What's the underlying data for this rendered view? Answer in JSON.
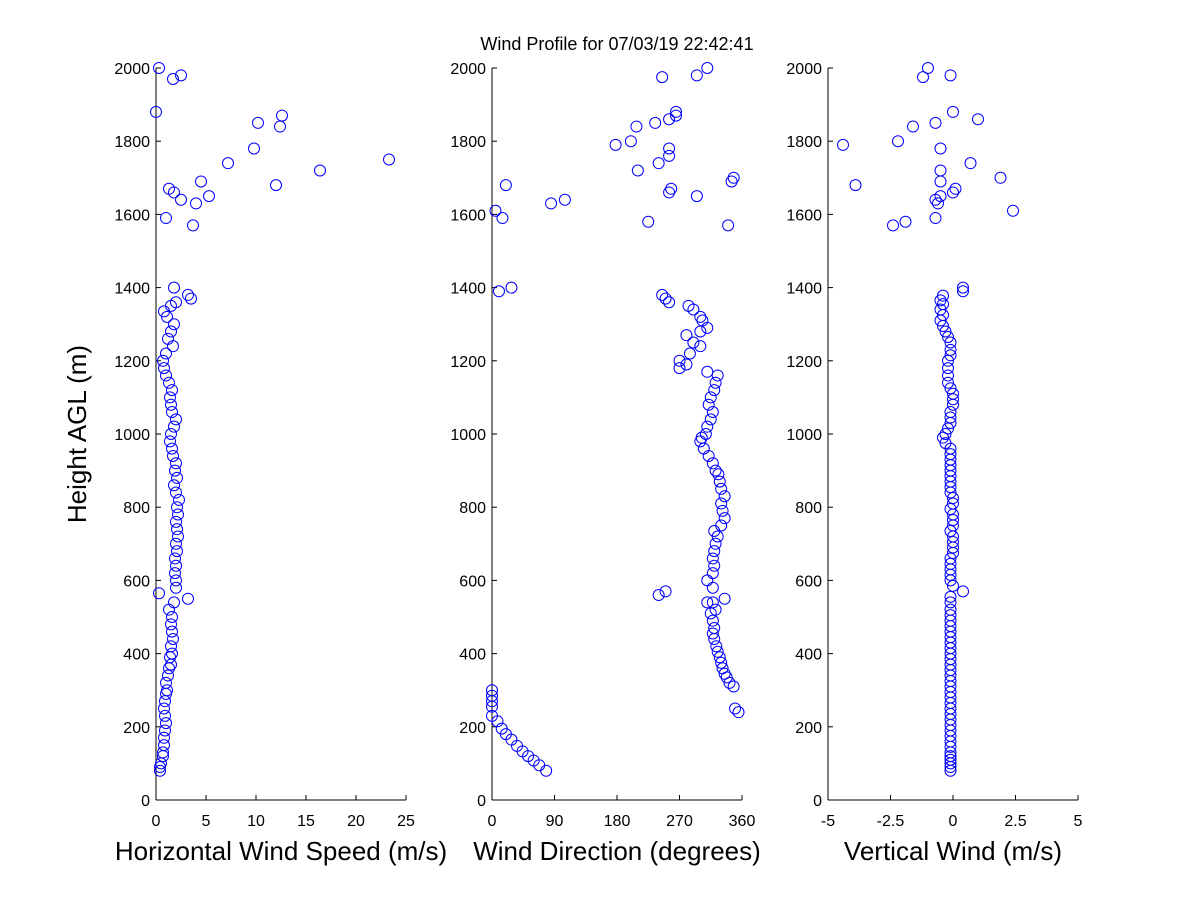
{
  "title": "Wind Profile for  07/03/19 22:42:41",
  "chart_data": [
    {
      "type": "scatter",
      "xlabel": "Horizontal Wind Speed (m/s)",
      "ylabel": "Height AGL (m)",
      "xlim": [
        0,
        25
      ],
      "ylim": [
        0,
        2000
      ],
      "xticks": [
        "0",
        "5",
        "10",
        "15",
        "20",
        "25"
      ],
      "yticks": [
        "0",
        "200",
        "400",
        "600",
        "800",
        "1000",
        "1200",
        "1400",
        "1600",
        "1800",
        "2000"
      ],
      "marker_color": "#0000ff",
      "points": [
        [
          0.4,
          80
        ],
        [
          0.4,
          90
        ],
        [
          0.5,
          100
        ],
        [
          0.7,
          120
        ],
        [
          0.7,
          130
        ],
        [
          0.8,
          150
        ],
        [
          0.8,
          170
        ],
        [
          0.9,
          190
        ],
        [
          1.0,
          210
        ],
        [
          0.9,
          230
        ],
        [
          0.8,
          250
        ],
        [
          0.9,
          270
        ],
        [
          1.0,
          290
        ],
        [
          1.1,
          300
        ],
        [
          1.0,
          320
        ],
        [
          1.2,
          340
        ],
        [
          1.3,
          360
        ],
        [
          1.5,
          370
        ],
        [
          1.4,
          390
        ],
        [
          1.6,
          400
        ],
        [
          1.5,
          420
        ],
        [
          1.7,
          440
        ],
        [
          1.6,
          460
        ],
        [
          1.5,
          480
        ],
        [
          1.6,
          500
        ],
        [
          1.3,
          520
        ],
        [
          1.8,
          540
        ],
        [
          3.2,
          550
        ],
        [
          0.3,
          565
        ],
        [
          2.0,
          580
        ],
        [
          2.0,
          600
        ],
        [
          1.9,
          620
        ],
        [
          2.0,
          640
        ],
        [
          1.9,
          660
        ],
        [
          2.1,
          680
        ],
        [
          2.0,
          700
        ],
        [
          2.2,
          720
        ],
        [
          2.1,
          740
        ],
        [
          2.0,
          760
        ],
        [
          2.2,
          780
        ],
        [
          2.1,
          800
        ],
        [
          2.3,
          820
        ],
        [
          2.0,
          840
        ],
        [
          1.8,
          860
        ],
        [
          2.1,
          880
        ],
        [
          1.9,
          900
        ],
        [
          2.0,
          920
        ],
        [
          1.7,
          940
        ],
        [
          1.6,
          960
        ],
        [
          1.4,
          980
        ],
        [
          1.5,
          1000
        ],
        [
          1.8,
          1020
        ],
        [
          2.0,
          1040
        ],
        [
          1.6,
          1060
        ],
        [
          1.5,
          1080
        ],
        [
          1.4,
          1100
        ],
        [
          1.6,
          1120
        ],
        [
          1.3,
          1140
        ],
        [
          1.0,
          1160
        ],
        [
          0.8,
          1180
        ],
        [
          0.7,
          1200
        ],
        [
          1.0,
          1220
        ],
        [
          1.7,
          1240
        ],
        [
          1.2,
          1260
        ],
        [
          1.5,
          1280
        ],
        [
          1.8,
          1300
        ],
        [
          1.1,
          1320
        ],
        [
          0.8,
          1335
        ],
        [
          1.5,
          1350
        ],
        [
          2.0,
          1360
        ],
        [
          3.5,
          1370
        ],
        [
          3.2,
          1380
        ],
        [
          1.8,
          1400
        ],
        [
          3.7,
          1570
        ],
        [
          1.0,
          1590
        ],
        [
          4.0,
          1630
        ],
        [
          2.5,
          1640
        ],
        [
          5.3,
          1650
        ],
        [
          1.8,
          1660
        ],
        [
          1.3,
          1670
        ],
        [
          12.0,
          1680
        ],
        [
          4.5,
          1690
        ],
        [
          16.4,
          1720
        ],
        [
          7.2,
          1740
        ],
        [
          23.3,
          1750
        ],
        [
          9.8,
          1780
        ],
        [
          12.4,
          1840
        ],
        [
          10.2,
          1850
        ],
        [
          12.6,
          1870
        ],
        [
          0.0,
          1880
        ],
        [
          1.7,
          1970
        ],
        [
          2.5,
          1980
        ],
        [
          0.3,
          2000
        ]
      ]
    },
    {
      "type": "scatter",
      "xlabel": "Wind Direction (degrees)",
      "ylabel": "",
      "xlim": [
        0,
        360
      ],
      "ylim": [
        0,
        2000
      ],
      "xticks": [
        "0",
        "90",
        "180",
        "270",
        "360"
      ],
      "yticks": [
        "0",
        "200",
        "400",
        "600",
        "800",
        "1000",
        "1200",
        "1400",
        "1600",
        "1800",
        "2000"
      ],
      "marker_color": "#0000ff",
      "points": [
        [
          78,
          80
        ],
        [
          68,
          95
        ],
        [
          60,
          108
        ],
        [
          52,
          120
        ],
        [
          44,
          133
        ],
        [
          36,
          148
        ],
        [
          28,
          165
        ],
        [
          20,
          180
        ],
        [
          14,
          195
        ],
        [
          8,
          215
        ],
        [
          0,
          230
        ],
        [
          0,
          255
        ],
        [
          0,
          270
        ],
        [
          0,
          285
        ],
        [
          0,
          300
        ],
        [
          355,
          240
        ],
        [
          350,
          250
        ],
        [
          348,
          310
        ],
        [
          342,
          320
        ],
        [
          338,
          335
        ],
        [
          335,
          345
        ],
        [
          332,
          360
        ],
        [
          330,
          375
        ],
        [
          328,
          390
        ],
        [
          325,
          405
        ],
        [
          323,
          420
        ],
        [
          320,
          440
        ],
        [
          318,
          455
        ],
        [
          320,
          470
        ],
        [
          318,
          490
        ],
        [
          315,
          510
        ],
        [
          322,
          520
        ],
        [
          318,
          540
        ],
        [
          310,
          540
        ],
        [
          335,
          550
        ],
        [
          240,
          560
        ],
        [
          250,
          570
        ],
        [
          318,
          580
        ],
        [
          310,
          600
        ],
        [
          318,
          620
        ],
        [
          320,
          640
        ],
        [
          318,
          660
        ],
        [
          320,
          680
        ],
        [
          322,
          700
        ],
        [
          325,
          720
        ],
        [
          320,
          735
        ],
        [
          330,
          750
        ],
        [
          335,
          770
        ],
        [
          332,
          790
        ],
        [
          330,
          810
        ],
        [
          335,
          830
        ],
        [
          330,
          850
        ],
        [
          328,
          870
        ],
        [
          326,
          890
        ],
        [
          322,
          900
        ],
        [
          318,
          920
        ],
        [
          312,
          940
        ],
        [
          305,
          960
        ],
        [
          300,
          980
        ],
        [
          302,
          990
        ],
        [
          308,
          1000
        ],
        [
          310,
          1020
        ],
        [
          315,
          1040
        ],
        [
          318,
          1060
        ],
        [
          312,
          1080
        ],
        [
          315,
          1100
        ],
        [
          320,
          1120
        ],
        [
          322,
          1140
        ],
        [
          325,
          1160
        ],
        [
          310,
          1170
        ],
        [
          270,
          1180
        ],
        [
          280,
          1190
        ],
        [
          270,
          1200
        ],
        [
          285,
          1220
        ],
        [
          300,
          1240
        ],
        [
          290,
          1250
        ],
        [
          280,
          1270
        ],
        [
          300,
          1280
        ],
        [
          310,
          1290
        ],
        [
          303,
          1310
        ],
        [
          300,
          1320
        ],
        [
          290,
          1340
        ],
        [
          283,
          1350
        ],
        [
          255,
          1360
        ],
        [
          250,
          1370
        ],
        [
          245,
          1380
        ],
        [
          28,
          1400
        ],
        [
          10,
          1390
        ],
        [
          340,
          1570
        ],
        [
          225,
          1580
        ],
        [
          5,
          1610
        ],
        [
          15,
          1590
        ],
        [
          85,
          1630
        ],
        [
          105,
          1640
        ],
        [
          295,
          1650
        ],
        [
          255,
          1660
        ],
        [
          258,
          1670
        ],
        [
          20,
          1680
        ],
        [
          345,
          1690
        ],
        [
          348,
          1700
        ],
        [
          210,
          1720
        ],
        [
          240,
          1740
        ],
        [
          255,
          1760
        ],
        [
          255,
          1780
        ],
        [
          178,
          1790
        ],
        [
          200,
          1800
        ],
        [
          208,
          1840
        ],
        [
          235,
          1850
        ],
        [
          255,
          1860
        ],
        [
          265,
          1870
        ],
        [
          265,
          1880
        ],
        [
          245,
          1975
        ],
        [
          295,
          1980
        ],
        [
          310,
          2000
        ]
      ]
    },
    {
      "type": "scatter",
      "xlabel": "Vertical Wind (m/s)",
      "ylabel": "",
      "xlim": [
        -5,
        5
      ],
      "ylim": [
        0,
        2000
      ],
      "xticks": [
        "-5",
        "-2.5",
        "0",
        "2.5",
        "5"
      ],
      "yticks": [
        "0",
        "200",
        "400",
        "600",
        "800",
        "1000",
        "1200",
        "1400",
        "1600",
        "1800",
        "2000"
      ],
      "marker_color": "#0000ff",
      "points": [
        [
          -0.1,
          80
        ],
        [
          -0.1,
          90
        ],
        [
          -0.1,
          100
        ],
        [
          -0.1,
          110
        ],
        [
          -0.1,
          120
        ],
        [
          -0.1,
          130
        ],
        [
          -0.1,
          145
        ],
        [
          -0.1,
          160
        ],
        [
          -0.1,
          175
        ],
        [
          -0.1,
          190
        ],
        [
          -0.1,
          205
        ],
        [
          -0.1,
          220
        ],
        [
          -0.1,
          235
        ],
        [
          -0.1,
          250
        ],
        [
          -0.1,
          265
        ],
        [
          -0.1,
          280
        ],
        [
          -0.1,
          295
        ],
        [
          -0.1,
          310
        ],
        [
          -0.1,
          325
        ],
        [
          -0.1,
          340
        ],
        [
          -0.1,
          355
        ],
        [
          -0.1,
          370
        ],
        [
          -0.1,
          385
        ],
        [
          -0.1,
          400
        ],
        [
          -0.1,
          415
        ],
        [
          -0.1,
          430
        ],
        [
          -0.1,
          445
        ],
        [
          -0.1,
          460
        ],
        [
          -0.1,
          475
        ],
        [
          -0.1,
          490
        ],
        [
          -0.1,
          505
        ],
        [
          -0.1,
          520
        ],
        [
          -0.1,
          540
        ],
        [
          -0.1,
          555
        ],
        [
          0.4,
          570
        ],
        [
          0.0,
          585
        ],
        [
          -0.1,
          600
        ],
        [
          -0.1,
          615
        ],
        [
          -0.1,
          630
        ],
        [
          -0.1,
          645
        ],
        [
          -0.1,
          660
        ],
        [
          0.0,
          675
        ],
        [
          0.0,
          690
        ],
        [
          0.0,
          705
        ],
        [
          0.0,
          720
        ],
        [
          -0.1,
          735
        ],
        [
          0.0,
          750
        ],
        [
          0.0,
          765
        ],
        [
          0.0,
          780
        ],
        [
          -0.1,
          795
        ],
        [
          0.0,
          810
        ],
        [
          0.0,
          825
        ],
        [
          -0.1,
          840
        ],
        [
          -0.1,
          855
        ],
        [
          -0.1,
          870
        ],
        [
          -0.1,
          885
        ],
        [
          -0.1,
          900
        ],
        [
          -0.1,
          915
        ],
        [
          -0.1,
          930
        ],
        [
          -0.1,
          945
        ],
        [
          -0.1,
          960
        ],
        [
          -0.3,
          975
        ],
        [
          -0.4,
          990
        ],
        [
          -0.3,
          1000
        ],
        [
          -0.2,
          1015
        ],
        [
          -0.1,
          1030
        ],
        [
          -0.1,
          1045
        ],
        [
          -0.1,
          1060
        ],
        [
          0.0,
          1080
        ],
        [
          0.0,
          1095
        ],
        [
          0.0,
          1110
        ],
        [
          -0.1,
          1125
        ],
        [
          -0.2,
          1140
        ],
        [
          -0.2,
          1160
        ],
        [
          -0.2,
          1180
        ],
        [
          -0.2,
          1200
        ],
        [
          -0.1,
          1215
        ],
        [
          -0.1,
          1230
        ],
        [
          -0.1,
          1250
        ],
        [
          -0.2,
          1265
        ],
        [
          -0.3,
          1280
        ],
        [
          -0.4,
          1295
        ],
        [
          -0.5,
          1310
        ],
        [
          -0.4,
          1325
        ],
        [
          -0.5,
          1340
        ],
        [
          -0.4,
          1355
        ],
        [
          -0.5,
          1365
        ],
        [
          -0.4,
          1378
        ],
        [
          0.4,
          1390
        ],
        [
          0.4,
          1400
        ],
        [
          -2.4,
          1570
        ],
        [
          -1.9,
          1580
        ],
        [
          -0.7,
          1590
        ],
        [
          2.4,
          1610
        ],
        [
          -0.6,
          1630
        ],
        [
          -0.7,
          1640
        ],
        [
          -0.5,
          1650
        ],
        [
          0.0,
          1660
        ],
        [
          0.1,
          1670
        ],
        [
          -3.9,
          1680
        ],
        [
          -0.5,
          1690
        ],
        [
          1.9,
          1700
        ],
        [
          -0.5,
          1720
        ],
        [
          0.7,
          1740
        ],
        [
          -0.5,
          1780
        ],
        [
          -4.4,
          1790
        ],
        [
          -2.2,
          1800
        ],
        [
          -1.6,
          1840
        ],
        [
          -0.7,
          1850
        ],
        [
          1.0,
          1860
        ],
        [
          0.0,
          1880
        ],
        [
          -1.2,
          1975
        ],
        [
          -0.1,
          1980
        ],
        [
          -1.0,
          2000
        ]
      ]
    }
  ]
}
